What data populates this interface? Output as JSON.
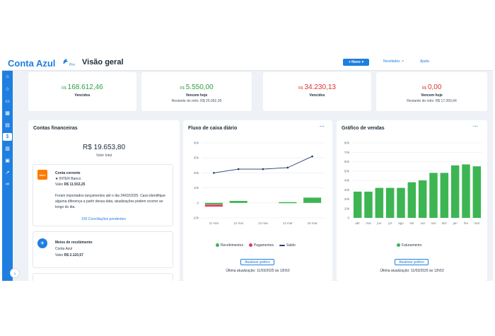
{
  "header": {
    "brand": "Conta Azul",
    "plan": "Pro",
    "page_title": "Visão geral",
    "new_button": "+ Novo",
    "news_link": "Novidades",
    "help_link": "Ajuda"
  },
  "sidebar": {
    "icons": [
      "home-icon",
      "star-icon",
      "card-icon",
      "store-icon",
      "document-icon",
      "money-icon",
      "bank-icon",
      "box-icon",
      "chart-icon",
      "link-icon"
    ],
    "active_index": 5,
    "expand_label": "›"
  },
  "kpis": [
    {
      "currency": "R$",
      "value": "168.612,46",
      "label": "Vencidos",
      "rest": "",
      "color": "green"
    },
    {
      "currency": "R$",
      "value": "5.550,00",
      "label": "Vencem hoje",
      "rest": "Restante do mês: R$ 26.092,39",
      "color": "green"
    },
    {
      "currency": "R$",
      "value": "34.230,13",
      "label": "Vencidos",
      "rest": "",
      "color": "red"
    },
    {
      "currency": "R$",
      "value": "0,00",
      "label": "Vencem hoje",
      "rest": "Restante do mês: R$ 17.260,64",
      "color": "red"
    }
  ],
  "accounts_card": {
    "title": "Contas financeiras",
    "total": "R$ 19.653,80",
    "total_label": "Valor total",
    "account1": {
      "logo": "inter",
      "name": "Conta corrente",
      "bank": "INTER Banco",
      "value_label": "Valor",
      "value": "R$ 11.553,25",
      "note": "Foram importados lançamentos até o dia 24/02/2025. Caso identifique alguma diferença a partir dessa data, atualizações podem ocorrer ao longo do dia.",
      "pending_link": "150 Conciliações pendentes"
    },
    "account2": {
      "name": "Meios de recebimento",
      "bank": "Conta Azul",
      "value_label": "Valor",
      "value": "R$ 2.120,57"
    }
  },
  "cashflow_card": {
    "title": "Fluxo de caixa diário",
    "update_button": "Atualizar gráfico",
    "last_update": "Última atualização: 11/03/2025 às 12h53",
    "legend": [
      "Recebimentos",
      "Pagamentos",
      "Saldo"
    ]
  },
  "sales_card": {
    "title": "Gráfico de vendas",
    "update_button": "Atualizar gráfico",
    "last_update": "Última atualização: 11/03/2025 às 12h53",
    "legend": [
      "Faturamento"
    ]
  },
  "colors": {
    "accent": "#1f7fe0",
    "green": "#2ea044",
    "red": "#e03131",
    "bar_green": "#3db553",
    "pay_pink": "#e8385c",
    "saldo_navy": "#243b6b"
  },
  "chart_data": [
    {
      "type": "bar",
      "title": "Fluxo de caixa diário",
      "categories": [
        "11 mar",
        "12 mar",
        "13 mar",
        "14 mar",
        "15 mar"
      ],
      "y_ticks": [
        "40k",
        "30k",
        "20k",
        "10k",
        "0",
        "-10k"
      ],
      "ylim": [
        -10000,
        40000
      ],
      "series": [
        {
          "name": "Recebimentos",
          "type": "bar",
          "values": [
            -1000,
            1300,
            0,
            500,
            3500
          ]
        },
        {
          "name": "Pagamentos",
          "type": "bar",
          "values": [
            -2500,
            0,
            0,
            0,
            0
          ]
        },
        {
          "name": "Saldo",
          "type": "line",
          "values": [
            20000,
            22500,
            22500,
            23500,
            31000
          ]
        }
      ]
    },
    {
      "type": "bar",
      "title": "Gráfico de vendas",
      "categories": [
        "abr",
        "mai",
        "jun",
        "jul",
        "ago",
        "set",
        "out",
        "nov",
        "dez",
        "jan",
        "fev",
        "mar"
      ],
      "y_ticks": [
        "80k",
        "70k",
        "60k",
        "50k",
        "40k",
        "30k",
        "20k",
        "10k",
        "0"
      ],
      "ylim": [
        0,
        80000
      ],
      "series": [
        {
          "name": "Faturamento",
          "values": [
            28000,
            28000,
            32000,
            32000,
            32000,
            38000,
            40000,
            48000,
            48000,
            56000,
            57000,
            55000
          ]
        }
      ]
    }
  ]
}
